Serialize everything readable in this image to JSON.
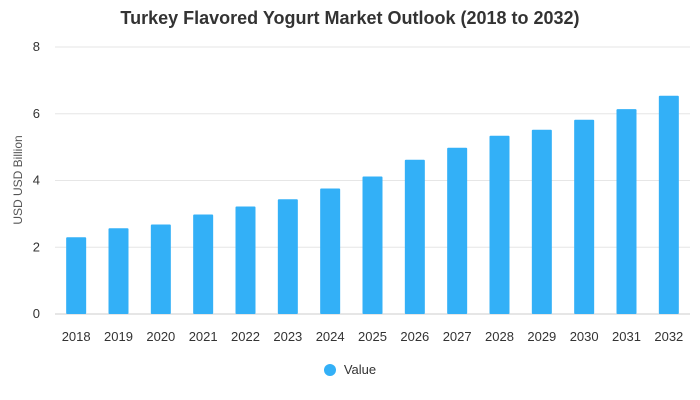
{
  "chart_data": {
    "type": "bar",
    "title": "Turkey Flavored Yogurt Market Outlook (2018 to 2032)",
    "xlabel": "",
    "ylabel": "USD USD Billion",
    "ylim": [
      0,
      8
    ],
    "yticks": [
      0,
      2,
      4,
      6,
      8
    ],
    "categories": [
      "2018",
      "2019",
      "2020",
      "2021",
      "2022",
      "2023",
      "2024",
      "2025",
      "2026",
      "2027",
      "2028",
      "2029",
      "2030",
      "2031",
      "2032"
    ],
    "series": [
      {
        "name": "Value",
        "color": "#33b0f7",
        "values": [
          2.3,
          2.57,
          2.68,
          2.98,
          3.22,
          3.44,
          3.76,
          4.12,
          4.62,
          4.98,
          5.34,
          5.52,
          5.82,
          6.14,
          6.54
        ]
      }
    ],
    "grid": true,
    "legend_position": "bottom"
  }
}
